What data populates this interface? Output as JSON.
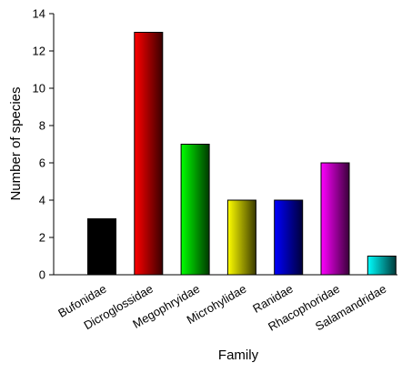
{
  "chart_data": {
    "type": "bar",
    "categories": [
      "Bufonidae",
      "Dicroglossidae",
      "Megophryidae",
      "Microhylidae",
      "Ranidae",
      "Rhacophoridae",
      "Salamandridae"
    ],
    "values": [
      3,
      13,
      7,
      4,
      4,
      6,
      1
    ],
    "xlabel": "Family",
    "ylabel": "Number of species",
    "ylim": [
      0,
      14
    ],
    "yticks": [
      0,
      2,
      4,
      6,
      8,
      10,
      12,
      14
    ],
    "grid": false,
    "legend": "none",
    "bar_colors": [
      [
        "#000000",
        "#000000"
      ],
      [
        "#ff0000",
        "#3a0000"
      ],
      [
        "#00ff00",
        "#003a00"
      ],
      [
        "#ffff00",
        "#3a3a00"
      ],
      [
        "#0000ff",
        "#00003a"
      ],
      [
        "#ff00ff",
        "#3a003a"
      ],
      [
        "#00ffff",
        "#003a3a"
      ]
    ]
  }
}
